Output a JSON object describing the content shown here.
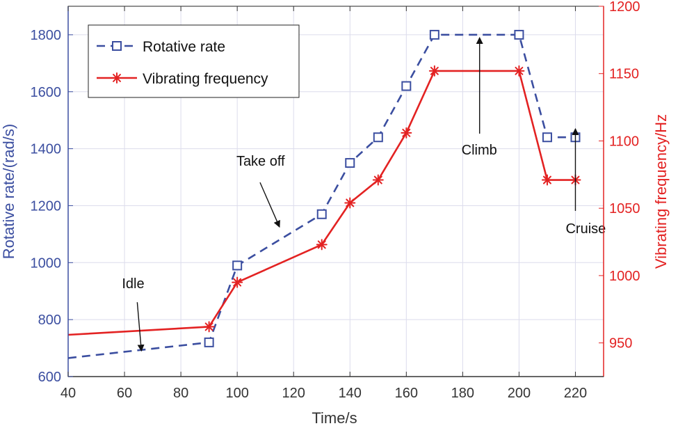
{
  "chart_data": {
    "type": "line",
    "xlabel": "Time/s",
    "ylabel_left": "Rotative rate/(rad/s)",
    "ylabel_right": "Vibrating frequency/Hz",
    "xlim": [
      40,
      230
    ],
    "ylim_left": [
      600,
      1900
    ],
    "ylim_right": [
      925,
      1200
    ],
    "x_ticks": [
      40,
      60,
      80,
      100,
      120,
      140,
      160,
      180,
      200,
      220
    ],
    "y_left_ticks": [
      600,
      800,
      1000,
      1200,
      1400,
      1600,
      1800
    ],
    "y_right_ticks": [
      950,
      1000,
      1050,
      1100,
      1150,
      1200
    ],
    "grid": true,
    "legend_position": "top-left",
    "colors": {
      "left_axis": "#3b4ea0",
      "right_axis": "#e32222"
    },
    "series": [
      {
        "name": "Rotative rate",
        "axis": "left",
        "style": "dashed",
        "marker": "square",
        "color": "#3b4ea0",
        "x": [
          40,
          90,
          100,
          130,
          140,
          150,
          160,
          170,
          200,
          210,
          220
        ],
        "values": [
          665,
          720,
          990,
          1170,
          1350,
          1440,
          1620,
          1800,
          1800,
          1440,
          1440
        ],
        "marker_mask": [
          false,
          true,
          true,
          true,
          true,
          true,
          true,
          true,
          true,
          true,
          true
        ]
      },
      {
        "name": "Vibrating frequency",
        "axis": "right",
        "style": "solid",
        "marker": "asterisk",
        "color": "#e32222",
        "x": [
          40,
          90,
          100,
          130,
          140,
          150,
          160,
          170,
          200,
          210,
          220
        ],
        "values": [
          956,
          962,
          995,
          1023,
          1054,
          1071,
          1106,
          1152,
          1152,
          1071,
          1071
        ],
        "marker_mask": [
          false,
          true,
          true,
          true,
          true,
          true,
          true,
          true,
          true,
          true,
          true
        ]
      }
    ],
    "annotations": [
      {
        "text": "Idle",
        "at": [
          66,
          690
        ]
      },
      {
        "text": "Take off",
        "at": [
          115,
          1125
        ]
      },
      {
        "text": "Climb",
        "at": [
          186,
          1790
        ]
      },
      {
        "text": "Cruise",
        "at": [
          220,
          1470
        ]
      }
    ]
  }
}
